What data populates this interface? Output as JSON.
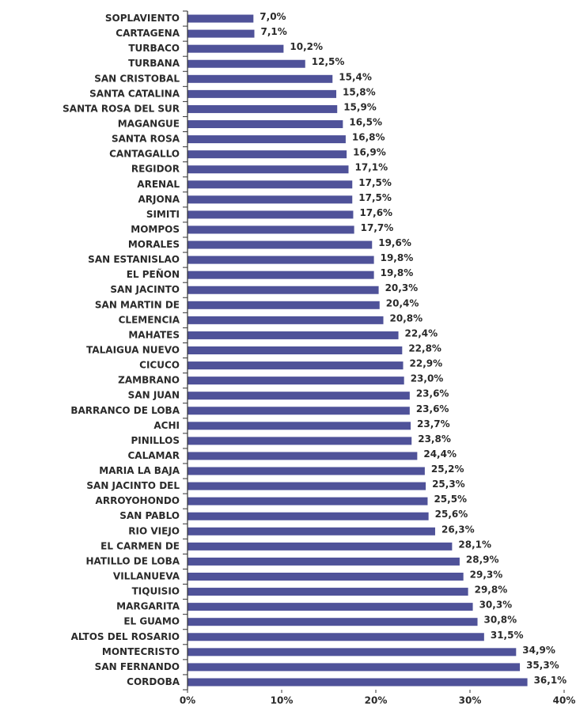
{
  "chart_data": {
    "type": "barh",
    "categories": [
      "SOPLAVIENTO",
      "CARTAGENA",
      "TURBACO",
      "TURBANA",
      "SAN CRISTOBAL",
      "SANTA CATALINA",
      "SANTA ROSA DEL SUR",
      "MAGANGUE",
      "SANTA ROSA",
      "CANTAGALLO",
      "REGIDOR",
      "ARENAL",
      "ARJONA",
      "SIMITI",
      "MOMPOS",
      "MORALES",
      "SAN ESTANISLAO",
      "EL PEÑON",
      "SAN JACINTO",
      "SAN MARTIN DE",
      "CLEMENCIA",
      "MAHATES",
      "TALAIGUA NUEVO",
      "CICUCO",
      "ZAMBRANO",
      "SAN JUAN",
      "BARRANCO DE LOBA",
      "ACHI",
      "PINILLOS",
      "CALAMAR",
      "MARIA LA BAJA",
      "SAN JACINTO DEL",
      "ARROYOHONDO",
      "SAN PABLO",
      "RIO VIEJO",
      "EL CARMEN DE",
      "HATILLO DE LOBA",
      "VILLANUEVA",
      "TIQUISIO",
      "MARGARITA",
      "EL GUAMO",
      "ALTOS DEL ROSARIO",
      "MONTECRISTO",
      "SAN FERNANDO",
      "CORDOBA"
    ],
    "values": [
      7.0,
      7.1,
      10.2,
      12.5,
      15.4,
      15.8,
      15.9,
      16.5,
      16.8,
      16.9,
      17.1,
      17.5,
      17.5,
      17.6,
      17.7,
      19.6,
      19.8,
      19.8,
      20.3,
      20.4,
      20.8,
      22.4,
      22.8,
      22.9,
      23.0,
      23.6,
      23.6,
      23.7,
      23.8,
      24.4,
      25.2,
      25.3,
      25.5,
      25.6,
      26.3,
      28.1,
      28.9,
      29.3,
      29.8,
      30.3,
      30.8,
      31.5,
      34.9,
      35.3,
      36.1
    ],
    "value_labels": [
      "7,0%",
      "7,1%",
      "10,2%",
      "12,5%",
      "15,4%",
      "15,8%",
      "15,9%",
      "16,5%",
      "16,8%",
      "16,9%",
      "17,1%",
      "17,5%",
      "17,5%",
      "17,6%",
      "17,7%",
      "19,6%",
      "19,8%",
      "19,8%",
      "20,3%",
      "20,4%",
      "20,8%",
      "22,4%",
      "22,8%",
      "22,9%",
      "23,0%",
      "23,6%",
      "23,6%",
      "23,7%",
      "23,8%",
      "24,4%",
      "25,2%",
      "25,3%",
      "25,5%",
      "25,6%",
      "26,3%",
      "28,1%",
      "28,9%",
      "29,3%",
      "29,8%",
      "30,3%",
      "30,8%",
      "31,5%",
      "34,9%",
      "35,3%",
      "36,1%"
    ],
    "color": "#4f5299",
    "xlim": [
      0,
      40
    ],
    "xticks": [
      {
        "value": 0,
        "label": "0%"
      },
      {
        "value": 10,
        "label": "10%"
      },
      {
        "value": 20,
        "label": "20%"
      },
      {
        "value": 30,
        "label": "30%"
      },
      {
        "value": 40,
        "label": "40%"
      }
    ]
  }
}
